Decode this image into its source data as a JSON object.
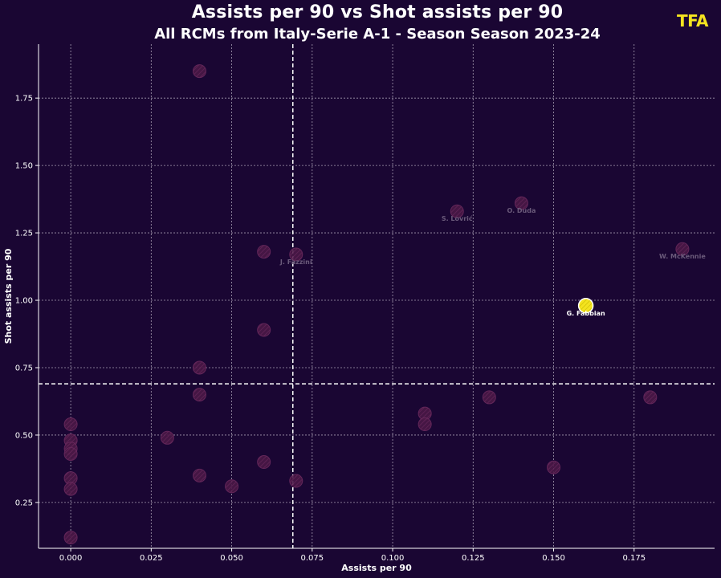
{
  "chart_data": {
    "type": "scatter",
    "title": "Assists per 90 vs Shot assists per 90",
    "subtitle": "All RCMs from Italy-Serie A-1 - Season Season 2023-24",
    "logo": "TFA",
    "xlabel": "Assists per 90",
    "ylabel": "Shot assists per 90",
    "xlim": [
      -0.01,
      0.2
    ],
    "ylim": [
      0.08,
      1.95
    ],
    "xticks": [
      0.0,
      0.025,
      0.05,
      0.075,
      0.1,
      0.125,
      0.15,
      0.175
    ],
    "xtick_labels": [
      "0.000",
      "0.025",
      "0.050",
      "0.075",
      "0.100",
      "0.125",
      "0.150",
      "0.175"
    ],
    "yticks": [
      0.25,
      0.5,
      0.75,
      1.0,
      1.25,
      1.5,
      1.75
    ],
    "ytick_labels": [
      "0.25",
      "0.50",
      "0.75",
      "1.00",
      "1.25",
      "1.50",
      "1.75"
    ],
    "grid": true,
    "reference_lines": {
      "x_mean": 0.069,
      "y_mean": 0.69
    },
    "colors": {
      "background": "#1a0633",
      "point": "#4a1846",
      "point_edge": "#6b2a5e",
      "highlight": "#f4e31f",
      "muted_label": "#6a5a7a",
      "grid": "#c8c0d0"
    },
    "points": [
      {
        "x": 0.04,
        "y": 1.85
      },
      {
        "x": 0.12,
        "y": 1.33,
        "label": "S. Lovrić"
      },
      {
        "x": 0.14,
        "y": 1.36,
        "label": "O. Duda"
      },
      {
        "x": 0.19,
        "y": 1.19,
        "label": "W. McKennie"
      },
      {
        "x": 0.06,
        "y": 1.18
      },
      {
        "x": 0.07,
        "y": 1.17,
        "label": "J. Fazzini"
      },
      {
        "x": 0.16,
        "y": 0.98,
        "label": "G. Fabbian",
        "highlight": true
      },
      {
        "x": 0.06,
        "y": 0.89
      },
      {
        "x": 0.04,
        "y": 0.75
      },
      {
        "x": 0.04,
        "y": 0.65
      },
      {
        "x": 0.13,
        "y": 0.64
      },
      {
        "x": 0.18,
        "y": 0.64
      },
      {
        "x": 0.11,
        "y": 0.58
      },
      {
        "x": 0.11,
        "y": 0.54
      },
      {
        "x": 0.0,
        "y": 0.54
      },
      {
        "x": 0.0,
        "y": 0.48
      },
      {
        "x": 0.0,
        "y": 0.45
      },
      {
        "x": 0.0,
        "y": 0.43
      },
      {
        "x": 0.03,
        "y": 0.49
      },
      {
        "x": 0.06,
        "y": 0.4
      },
      {
        "x": 0.15,
        "y": 0.38
      },
      {
        "x": 0.04,
        "y": 0.35
      },
      {
        "x": 0.0,
        "y": 0.34
      },
      {
        "x": 0.07,
        "y": 0.33
      },
      {
        "x": 0.05,
        "y": 0.31
      },
      {
        "x": 0.0,
        "y": 0.3
      },
      {
        "x": 0.0,
        "y": 0.12
      }
    ]
  }
}
